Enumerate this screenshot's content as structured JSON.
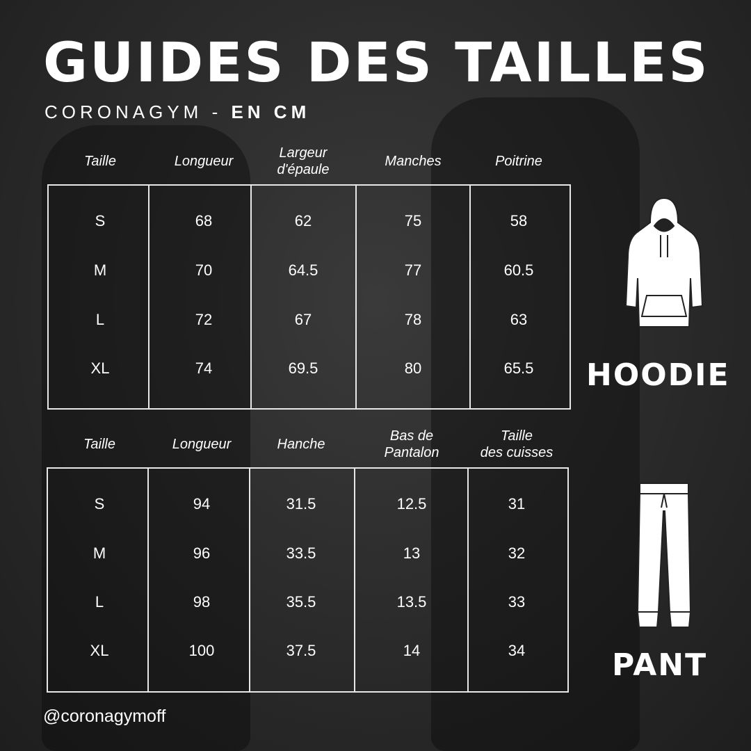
{
  "title": "GUIDES DES TAILLES",
  "subtitle": {
    "brand": "CORONAGYM - ",
    "unit": "EN CM"
  },
  "hoodie_table": {
    "headers": [
      "Taille",
      "Longueur",
      "Largeur\nd'épaule",
      "Manches",
      "Poitrine"
    ],
    "rows": [
      [
        "S",
        "68",
        "62",
        "75",
        "58"
      ],
      [
        "M",
        "70",
        "64.5",
        "77",
        "60.5"
      ],
      [
        "L",
        "72",
        "67",
        "78",
        "63"
      ],
      [
        "XL",
        "74",
        "69.5",
        "80",
        "65.5"
      ]
    ]
  },
  "pant_table": {
    "headers": [
      "Taille",
      "Longueur",
      "Hanche",
      "Bas de\nPantalon",
      "Taille\ndes cuisses"
    ],
    "rows": [
      [
        "S",
        "94",
        "31.5",
        "12.5",
        "31"
      ],
      [
        "M",
        "96",
        "33.5",
        "13",
        "32"
      ],
      [
        "L",
        "98",
        "35.5",
        "13.5",
        "33"
      ],
      [
        "XL",
        "100",
        "37.5",
        "14",
        "34"
      ]
    ]
  },
  "hoodie_label": "HOODIE",
  "pant_label": "PANT",
  "handle": "@coronagymoff",
  "icons": [
    "hoodie-icon",
    "pants-icon"
  ],
  "colors": {
    "background": "#2a2a2a",
    "text": "#ffffff",
    "lines": "#e8e8e8"
  }
}
